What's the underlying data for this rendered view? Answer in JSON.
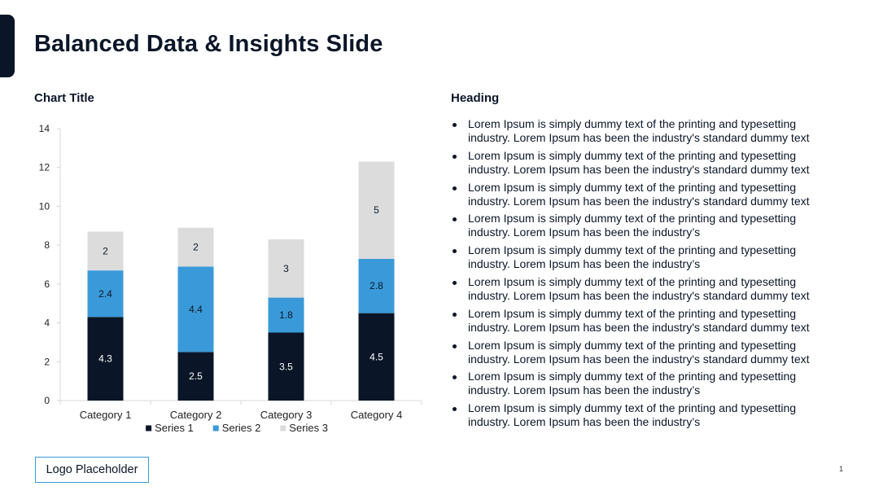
{
  "slide": {
    "title": "Balanced Data & Insights Slide",
    "page_number": "1",
    "logo_placeholder": "Logo Placeholder"
  },
  "colors": {
    "navy": "#0a1628",
    "blue": "#3a9ad9",
    "gray": "#dcdcdc"
  },
  "chart_data": {
    "type": "bar",
    "stacked": true,
    "title": "Chart Title",
    "categories": [
      "Category 1",
      "Category 2",
      "Category 3",
      "Category 4"
    ],
    "series": [
      {
        "name": "Series 1",
        "values": [
          4.3,
          2.5,
          3.5,
          4.5
        ],
        "color": "#0a1628",
        "label_color": "#ffffff"
      },
      {
        "name": "Series 2",
        "values": [
          2.4,
          4.4,
          1.8,
          2.8
        ],
        "color": "#3a9ad9",
        "label_color": "#0a1628"
      },
      {
        "name": "Series 3",
        "values": [
          2,
          2,
          3,
          5
        ],
        "color": "#dcdcdc",
        "label_color": "#0a1628"
      }
    ],
    "ylim": [
      0,
      14
    ],
    "yticks": [
      0,
      2,
      4,
      6,
      8,
      10,
      12,
      14
    ],
    "xlabel": "",
    "ylabel": "",
    "legend": "bottom",
    "grid": false
  },
  "insights": {
    "heading": "Heading",
    "bullets": [
      "Lorem Ipsum is simply dummy text of the printing and typesetting industry. Lorem Ipsum has been the industry's standard dummy text",
      "Lorem Ipsum is simply dummy text of the printing and typesetting industry. Lorem Ipsum has been the industry's standard dummy text",
      "Lorem Ipsum is simply dummy text of the printing and typesetting industry. Lorem Ipsum has been the industry's standard dummy text",
      "Lorem Ipsum is simply dummy text of the printing and typesetting industry. Lorem Ipsum has been the industry’s",
      "Lorem Ipsum is simply dummy text of the printing and typesetting industry. Lorem Ipsum has been the industry’s",
      "Lorem Ipsum is simply dummy text of the printing and typesetting industry. Lorem Ipsum has been the industry's standard dummy text",
      "Lorem Ipsum is simply dummy text of the printing and typesetting industry. Lorem Ipsum has been the industry's standard dummy text",
      "Lorem Ipsum is simply dummy text of the printing and typesetting industry. Lorem Ipsum has been the industry's standard dummy text",
      "Lorem Ipsum is simply dummy text of the printing and typesetting industry. Lorem Ipsum has been the industry’s",
      "Lorem Ipsum is simply dummy text of the printing and typesetting industry. Lorem Ipsum has been the industry’s"
    ]
  }
}
